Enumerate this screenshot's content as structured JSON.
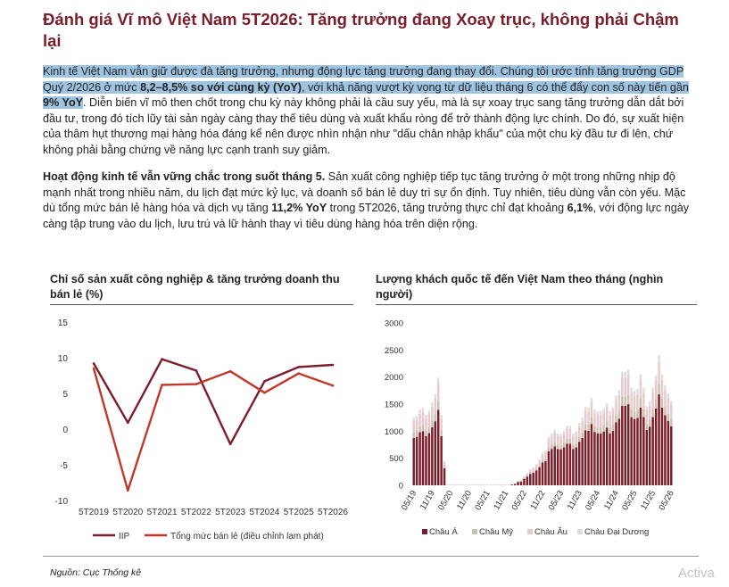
{
  "title": "Đánh giá Vĩ mô Việt Nam 5T2026: Tăng trưởng đang Xoay trục, không phải Chậm lại",
  "paragraph1": {
    "hl_a": "Kinh tế Việt Nam vẫn giữ được đà tăng trưởng, nhưng động lực tăng trưởng đang thay đổi. Chúng tôi ước tính tăng trưởng GDP Quý 2/2026 ở mức ",
    "hl_b": "8,2–8,5% so với cùng kỳ (YoY)",
    "hl_c": ", với khả năng vượt kỳ vọng từ dữ liệu tháng 6 có thể đẩy con số này tiến gần ",
    "hl_d": "9% YoY",
    "rest": ". Diễn biến vĩ mô then chốt trong chu kỳ này không phải là cầu suy yếu, mà là sự xoay trục sang tăng trưởng dẫn dắt bởi đầu tư, trong đó tích lũy tài sản ngày càng thay thế tiêu dùng và xuất khẩu ròng để trở thành động lực chính. Do đó, sự xuất hiện của thâm hụt thương mại hàng hóa đáng kể nên được nhìn nhận như \"dấu chân nhập khẩu\" của một chu kỳ đầu tư đi lên, chứ không phải bằng chứng về năng lực cạnh tranh suy giảm."
  },
  "paragraph2": {
    "lead": "Hoạt động kinh tế vẫn vững chắc trong suốt tháng 5.",
    "a": " Sản xuất công nghiệp tiếp tục tăng trưởng ở một trong những nhịp độ mạnh nhất trong nhiều năm, du lịch đạt mức kỷ lục, và doanh số bán lẻ duy trì sự ổn định. Tuy nhiên, tiêu dùng vẫn còn yếu. Mặc dù tổng mức bán lẻ hàng hóa và dịch vụ tăng ",
    "b": "11,2% YoY",
    "c": " trong 5T2026, tăng trưởng thực chỉ đạt khoảng ",
    "d": "6,1%",
    "e": ", với động lực ngày càng tập trung vào du lịch, lưu trú và lữ hành thay vì tiêu dùng hàng hóa trên diện rộng."
  },
  "chart_left_title": "Chỉ số sản xuất công nghiệp & tăng trưởng doanh thu bán lẻ (%)",
  "chart_right_title": "Lượng khách quốc tế đến Việt Nam theo tháng (nghìn người)",
  "source": "Nguồn: Cục Thống kê",
  "watermark": "Activa",
  "colors": {
    "iip": "#7b1e2b",
    "retail": "#c0392b",
    "asia": "#7b1e2b",
    "americas": "#c9c0b0",
    "europe": "#e8c9cb",
    "oceania": "#dedede"
  },
  "chart_data": [
    {
      "type": "line",
      "categories": [
        "5T2019",
        "5T2020",
        "5T2021",
        "5T2022",
        "5T2023",
        "5T2024",
        "5T2025",
        "5T2026"
      ],
      "ylim": [
        -10,
        15
      ],
      "yticks": [
        "15",
        "10",
        "5",
        "0",
        "-5",
        "-10"
      ],
      "series": [
        {
          "name": "IIP",
          "values": [
            9.2,
            0.9,
            9.8,
            8.2,
            -2.1,
            6.7,
            8.7,
            9.0
          ]
        },
        {
          "name": "Tổng mức bán lẻ (điều chỉnh lạm phát)",
          "values": [
            8.5,
            -8.6,
            6.2,
            6.3,
            8.1,
            5.1,
            7.8,
            6.1
          ]
        }
      ]
    },
    {
      "type": "bar",
      "stacked": true,
      "ylim": [
        0,
        3000
      ],
      "yticks": [
        "3000",
        "2500",
        "2000",
        "1500",
        "1000",
        "500",
        "0"
      ],
      "xticks": [
        "05/19",
        "11/19",
        "05/20",
        "11/20",
        "05/21",
        "11/21",
        "05/22",
        "11/22",
        "05/23",
        "11/23",
        "05/24",
        "11/24",
        "05/25",
        "11/25",
        "05/26"
      ],
      "months": [
        "05/19",
        "06/19",
        "07/19",
        "08/19",
        "09/19",
        "10/19",
        "11/19",
        "12/19",
        "01/20",
        "02/20",
        "03/20",
        "04/20",
        "05/20",
        "06/20",
        "07/20",
        "08/20",
        "09/20",
        "10/20",
        "11/20",
        "12/20",
        "01/21",
        "02/21",
        "03/21",
        "04/21",
        "05/21",
        "06/21",
        "07/21",
        "08/21",
        "09/21",
        "10/21",
        "11/21",
        "12/21",
        "01/22",
        "02/22",
        "03/22",
        "04/22",
        "05/22",
        "06/22",
        "07/22",
        "08/22",
        "09/22",
        "10/22",
        "11/22",
        "12/22",
        "01/23",
        "02/23",
        "03/23",
        "04/23",
        "05/23",
        "06/23",
        "07/23",
        "08/23",
        "09/23",
        "10/23",
        "11/23",
        "12/23",
        "01/24",
        "02/24",
        "03/24",
        "04/24",
        "05/24",
        "06/24",
        "07/24",
        "08/24",
        "09/24",
        "10/24",
        "11/24",
        "12/24",
        "01/25",
        "02/25",
        "03/25",
        "04/25",
        "05/25",
        "06/25",
        "07/25",
        "08/25",
        "09/25",
        "10/25",
        "11/25",
        "12/25",
        "01/26",
        "02/26",
        "03/26",
        "04/26",
        "05/26"
      ],
      "totals": [
        1250,
        1280,
        1400,
        1430,
        1300,
        1380,
        1530,
        1690,
        1990,
        1300,
        450,
        5,
        5,
        5,
        5,
        5,
        5,
        5,
        5,
        5,
        5,
        5,
        5,
        5,
        5,
        5,
        5,
        5,
        5,
        5,
        5,
        5,
        20,
        35,
        90,
        100,
        170,
        230,
        300,
        330,
        390,
        480,
        600,
        640,
        900,
        960,
        1030,
        960,
        950,
        1000,
        1100,
        1100,
        960,
        1000,
        1150,
        1250,
        1450,
        1440,
        1620,
        1410,
        1370,
        1370,
        1420,
        1520,
        1370,
        1440,
        1660,
        1760,
        2100,
        2100,
        2140,
        1800,
        1750,
        1780,
        2050,
        1800,
        1460,
        1550,
        1800,
        2030,
        2400,
        2050,
        1850,
        1700,
        1560
      ],
      "shares": {
        "asia": 0.7,
        "americas": 0.08,
        "europe": 0.17,
        "oceania": 0.05
      },
      "legend": [
        {
          "key": "asia",
          "name": "Châu Á"
        },
        {
          "key": "americas",
          "name": "Châu Mỹ"
        },
        {
          "key": "europe",
          "name": "Châu Âu"
        },
        {
          "key": "oceania",
          "name": "Châu Đại Dương"
        }
      ]
    }
  ]
}
